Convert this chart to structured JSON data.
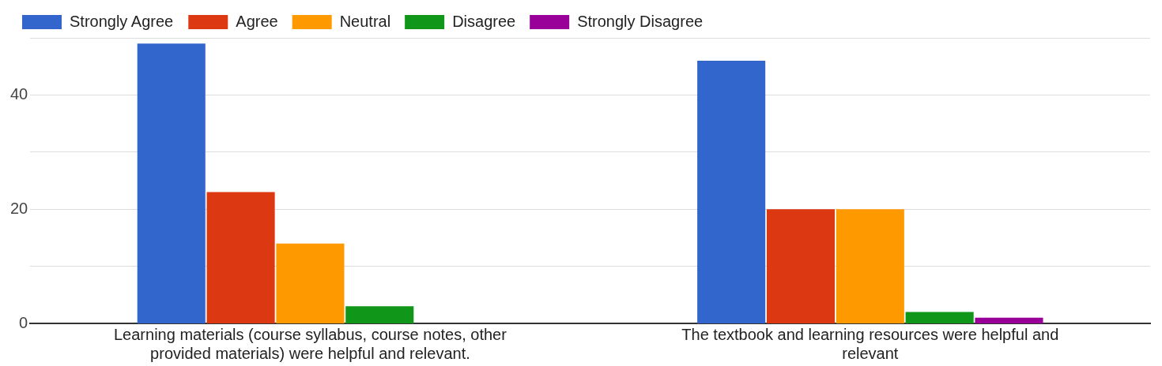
{
  "chart_data": {
    "type": "bar",
    "categories": [
      "Learning materials (course syllabus, course notes, other provided materials) were helpful and relevant.",
      "The textbook and learning resources were helpful and relevant"
    ],
    "series": [
      {
        "name": "Strongly Agree",
        "color": "#3366cc",
        "values": [
          49,
          46
        ]
      },
      {
        "name": "Agree",
        "color": "#dc3912",
        "values": [
          23,
          20
        ]
      },
      {
        "name": "Neutral",
        "color": "#ff9900",
        "values": [
          14,
          20
        ]
      },
      {
        "name": "Disagree",
        "color": "#109618",
        "values": [
          3,
          2
        ]
      },
      {
        "name": "Strongly Disagree",
        "color": "#990099",
        "values": [
          0,
          1
        ]
      }
    ],
    "ylim": [
      0,
      50
    ],
    "yticks": [
      0,
      {
        "value": 10,
        "label": null
      },
      20,
      {
        "value": 30,
        "label": null
      },
      40,
      {
        "value": 50,
        "label": null
      }
    ],
    "grid": "y",
    "legend": "top left"
  }
}
